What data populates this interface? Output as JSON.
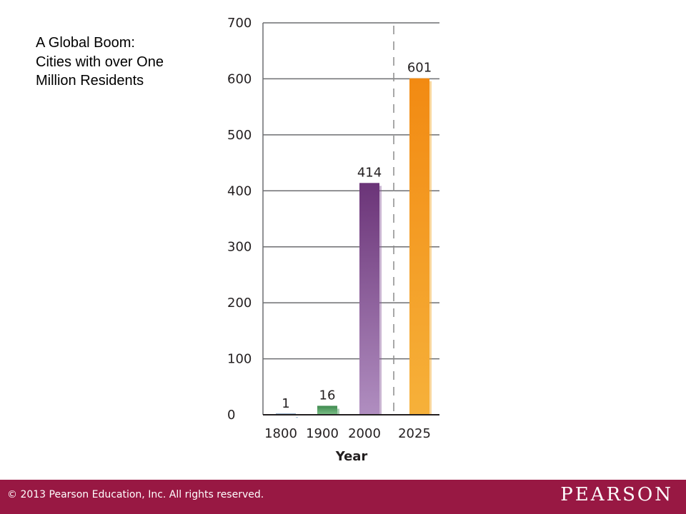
{
  "title_lines": [
    "A Global Boom:",
    "Cities with over One",
    "Million Residents"
  ],
  "chart_data": {
    "type": "bar",
    "title": "A Global Boom: Cities with over One Million Residents",
    "xlabel": "Year",
    "ylabel": "",
    "categories": [
      "1800",
      "1900",
      "2000",
      "2025"
    ],
    "values": [
      1,
      16,
      414,
      601
    ],
    "data_labels": [
      "1",
      "16",
      "414",
      "601"
    ],
    "y_ticks": [
      0,
      100,
      200,
      300,
      400,
      500,
      600,
      700
    ],
    "ylim": [
      0,
      700
    ],
    "grid": true,
    "projection_divider_between": [
      "2000",
      "2025"
    ],
    "colors": {
      "1800": "#2e6fa8",
      "1900": "#4a9a5a",
      "2000": "#8a5c9c",
      "2025": "#f5a623"
    }
  },
  "footer": {
    "copyright": "© 2013  Pearson Education, Inc. All rights reserved.",
    "brand": "PEARSON",
    "bar_color": "#981843"
  }
}
